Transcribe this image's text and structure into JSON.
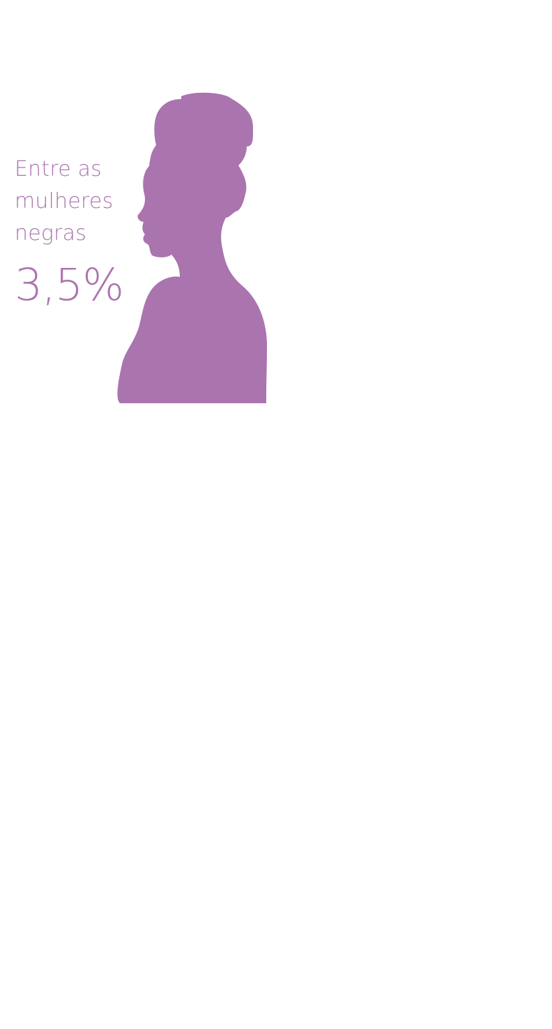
{
  "stat": {
    "label_lines": [
      "Entre as",
      "mulheres",
      "negras"
    ],
    "value": "3,5%"
  },
  "colors": {
    "accent": "#aa74ae",
    "silhouette": "#aa74ae"
  },
  "icon": "woman-profile-silhouette-icon"
}
